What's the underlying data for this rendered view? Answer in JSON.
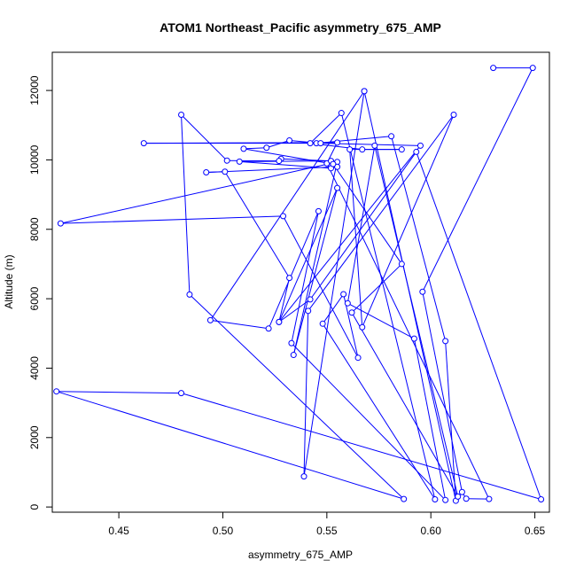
{
  "chart_data": {
    "type": "line",
    "title": "ATOM1 Northeast_Pacific asymmetry_675_AMP",
    "xlabel": "asymmetry_675_AMP",
    "ylabel": "Altitude (m)",
    "xlim": [
      0.418,
      0.657
    ],
    "ylim": [
      -150,
      13100
    ],
    "xticks": [
      0.45,
      0.5,
      0.55,
      0.6,
      0.65
    ],
    "xtick_labels": [
      "0.45",
      "0.50",
      "0.55",
      "0.60",
      "0.65"
    ],
    "yticks": [
      0,
      2000,
      4000,
      6000,
      8000,
      10000,
      12000
    ],
    "ytick_labels": [
      "0",
      "2000",
      "4000",
      "6000",
      "8000",
      "10000",
      "12000"
    ],
    "grid": false,
    "series_color": "#0000ff",
    "points": [
      {
        "x": 0.63,
        "y": 12650
      },
      {
        "x": 0.649,
        "y": 12650
      },
      {
        "x": 0.596,
        "y": 6200
      },
      {
        "x": 0.615,
        "y": 430
      },
      {
        "x": 0.617,
        "y": 240
      },
      {
        "x": 0.628,
        "y": 230
      },
      {
        "x": 0.55,
        "y": 9900
      },
      {
        "x": 0.555,
        "y": 10500
      },
      {
        "x": 0.462,
        "y": 10480
      },
      {
        "x": 0.545,
        "y": 10480
      },
      {
        "x": 0.581,
        "y": 10680
      },
      {
        "x": 0.607,
        "y": 4780
      },
      {
        "x": 0.612,
        "y": 180
      },
      {
        "x": 0.568,
        "y": 11980
      },
      {
        "x": 0.539,
        "y": 880
      },
      {
        "x": 0.541,
        "y": 5650
      },
      {
        "x": 0.611,
        "y": 11300
      },
      {
        "x": 0.567,
        "y": 5180
      },
      {
        "x": 0.561,
        "y": 10300
      },
      {
        "x": 0.586,
        "y": 10300
      },
      {
        "x": 0.567,
        "y": 10300
      },
      {
        "x": 0.542,
        "y": 10480
      },
      {
        "x": 0.557,
        "y": 11350
      },
      {
        "x": 0.602,
        "y": 220
      },
      {
        "x": 0.548,
        "y": 5280
      },
      {
        "x": 0.558,
        "y": 6130
      },
      {
        "x": 0.565,
        "y": 4300
      },
      {
        "x": 0.529,
        "y": 8380
      },
      {
        "x": 0.422,
        "y": 8170
      },
      {
        "x": 0.555,
        "y": 9940
      },
      {
        "x": 0.534,
        "y": 4380
      },
      {
        "x": 0.555,
        "y": 9190
      },
      {
        "x": 0.527,
        "y": 5330
      },
      {
        "x": 0.532,
        "y": 6600
      },
      {
        "x": 0.501,
        "y": 9660
      },
      {
        "x": 0.492,
        "y": 9640
      },
      {
        "x": 0.555,
        "y": 9800
      },
      {
        "x": 0.552,
        "y": 9760
      },
      {
        "x": 0.508,
        "y": 9950
      },
      {
        "x": 0.552,
        "y": 9970
      },
      {
        "x": 0.528,
        "y": 10030
      },
      {
        "x": 0.527,
        "y": 9970
      },
      {
        "x": 0.502,
        "y": 9980
      },
      {
        "x": 0.48,
        "y": 11300
      },
      {
        "x": 0.484,
        "y": 6120
      },
      {
        "x": 0.587,
        "y": 230
      },
      {
        "x": 0.42,
        "y": 3330
      },
      {
        "x": 0.48,
        "y": 3280
      },
      {
        "x": 0.653,
        "y": 220
      },
      {
        "x": 0.593,
        "y": 10230
      },
      {
        "x": 0.542,
        "y": 5980
      },
      {
        "x": 0.527,
        "y": 5330
      },
      {
        "x": 0.595,
        "y": 10410
      },
      {
        "x": 0.547,
        "y": 10480
      },
      {
        "x": 0.532,
        "y": 10560
      },
      {
        "x": 0.521,
        "y": 10350
      },
      {
        "x": 0.51,
        "y": 10320
      },
      {
        "x": 0.553,
        "y": 9880
      },
      {
        "x": 0.586,
        "y": 7000
      },
      {
        "x": 0.562,
        "y": 5600
      },
      {
        "x": 0.613,
        "y": 300
      },
      {
        "x": 0.573,
        "y": 10410
      },
      {
        "x": 0.56,
        "y": 5870
      },
      {
        "x": 0.592,
        "y": 4850
      },
      {
        "x": 0.607,
        "y": 200
      },
      {
        "x": 0.533,
        "y": 4720
      },
      {
        "x": 0.546,
        "y": 8520
      },
      {
        "x": 0.522,
        "y": 5140
      },
      {
        "x": 0.494,
        "y": 5380
      },
      {
        "x": 0.568,
        "y": 11980
      }
    ]
  }
}
